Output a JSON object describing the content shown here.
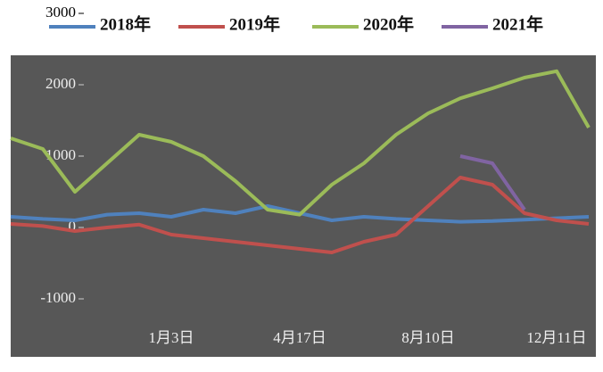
{
  "chart_data": {
    "type": "line",
    "categories": [
      null,
      null,
      null,
      null,
      null,
      "1月3日",
      null,
      null,
      null,
      "4月17日",
      null,
      null,
      null,
      "8月10日",
      null,
      null,
      null,
      "12月11日",
      null
    ],
    "series": [
      {
        "name": "2018年",
        "color": "#4f81bd",
        "values": [
          150,
          120,
          100,
          180,
          200,
          150,
          250,
          200,
          300,
          200,
          100,
          150,
          120,
          100,
          80,
          90,
          110,
          130,
          150
        ]
      },
      {
        "name": "2019年",
        "color": "#c0504d",
        "values": [
          50,
          20,
          -50,
          0,
          40,
          -100,
          -150,
          -200,
          -250,
          -300,
          -350,
          -200,
          -100,
          300,
          700,
          600,
          200,
          100,
          50
        ]
      },
      {
        "name": "2020年",
        "color": "#9bbb59",
        "values": [
          1250,
          1100,
          500,
          900,
          1300,
          1200,
          1000,
          650,
          250,
          180,
          600,
          900,
          1300,
          1600,
          1810,
          1950,
          2100,
          2190,
          1400
        ]
      },
      {
        "name": "2021年",
        "color": "#8064a2",
        "values": [
          null,
          null,
          null,
          null,
          null,
          null,
          null,
          null,
          null,
          null,
          null,
          null,
          null,
          null,
          1000,
          900,
          250,
          null,
          null
        ]
      }
    ],
    "ylim": [
      -1000,
      3000
    ],
    "yticks": [
      -1000,
      0,
      1000,
      2000,
      3000
    ]
  }
}
